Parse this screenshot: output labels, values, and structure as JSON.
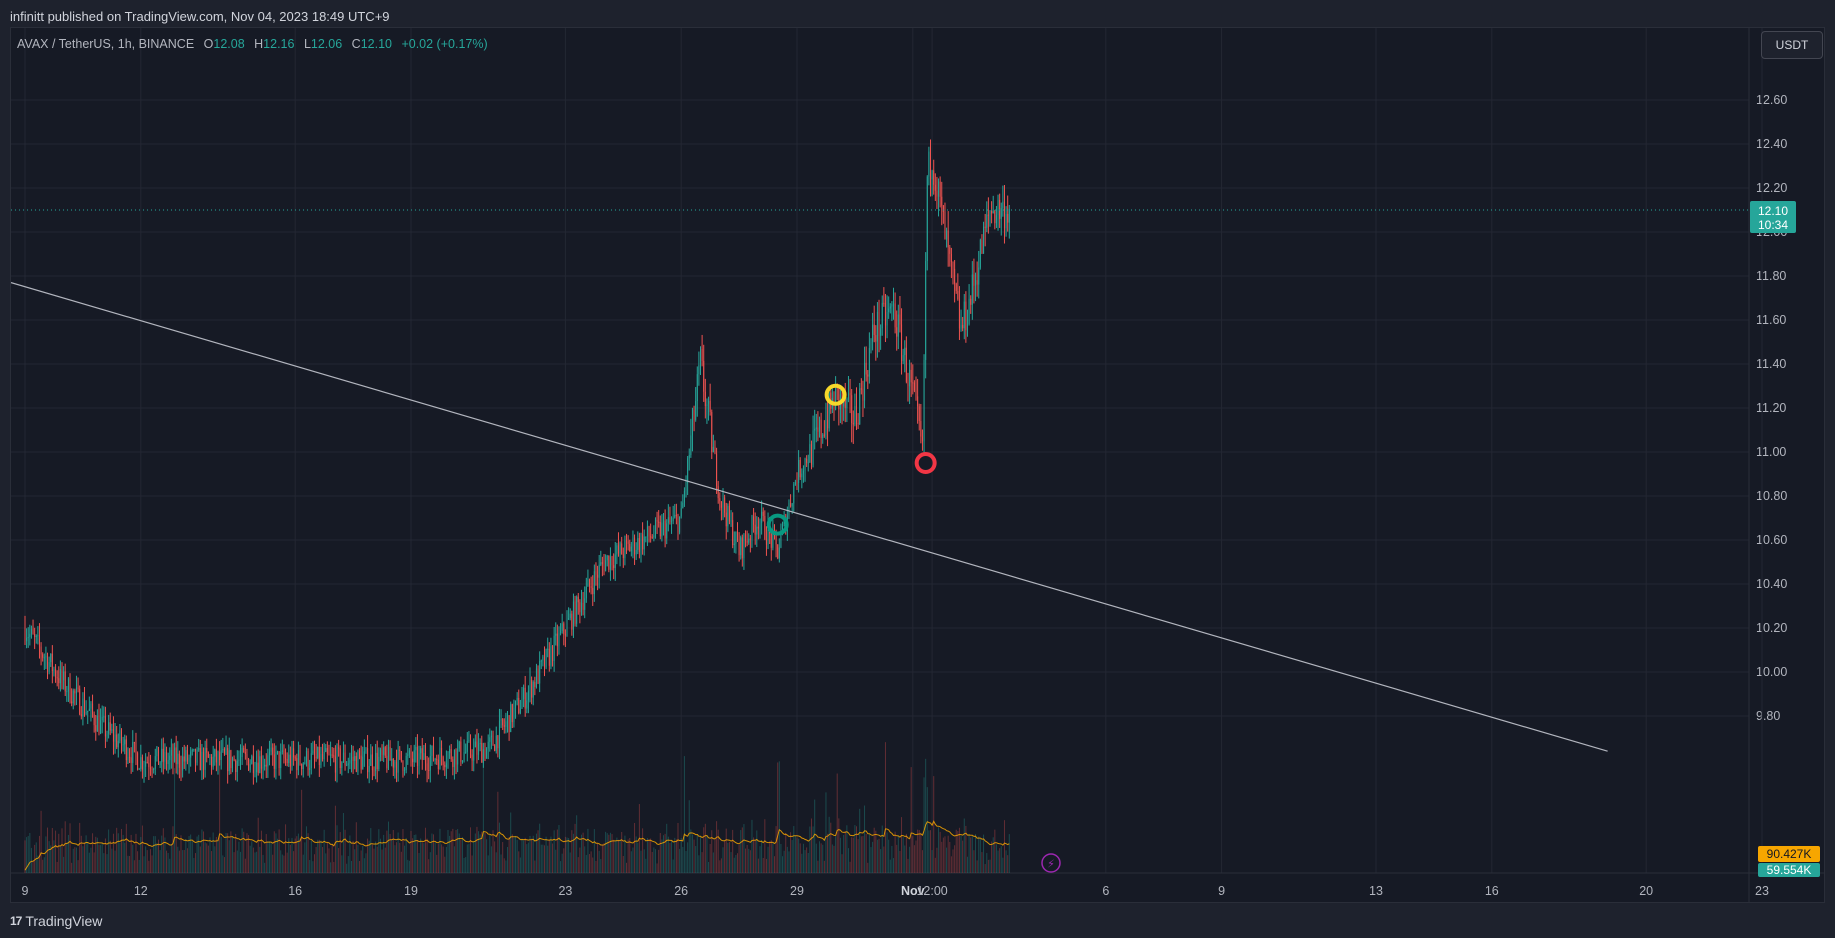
{
  "header": {
    "published": "infinitt published on TradingView.com, Nov 04, 2023 18:49 UTC+9"
  },
  "legend": {
    "symbol": "AVAX / TetherUS, 1h, BINANCE",
    "o_label": "O",
    "o_value": "12.08",
    "h_label": "H",
    "h_value": "12.16",
    "l_label": "L",
    "l_value": "12.06",
    "c_label": "C",
    "c_value": "12.10",
    "change": "+0.02 (+0.17%)"
  },
  "currency_button": "USDT",
  "price_badge": {
    "price": "12.10",
    "countdown": "10:34"
  },
  "volume_badges": {
    "ma": "90.427K",
    "volume": "59.554K"
  },
  "footer": {
    "logo_mark": "17",
    "brand": "TradingView"
  },
  "colors": {
    "up": "#26a69a",
    "down": "#ef5350",
    "trendline": "#b2b5be",
    "volume_ma": "#f7a600",
    "marker_green": "#089981",
    "marker_yellow": "#f7d82a",
    "marker_red": "#f23645",
    "alert": "#9c27b0"
  },
  "chart_data": {
    "type": "candlestick",
    "symbol": "AVAX / TetherUS",
    "interval": "1h",
    "y_ticks": [
      "12.60",
      "12.40",
      "12.20",
      "12.00",
      "11.80",
      "11.60",
      "11.40",
      "11.20",
      "11.00",
      "10.80",
      "10.60",
      "10.40",
      "10.20",
      "10.00",
      "9.80"
    ],
    "ylim": [
      9.6,
      12.8
    ],
    "x_ticks": [
      "9",
      "12",
      "16",
      "19",
      "23",
      "26",
      "29",
      "Nov",
      "12:00",
      "6",
      "9",
      "13",
      "16",
      "20",
      "23"
    ],
    "x_tick_dates": [
      "2023-10-09",
      "2023-10-12",
      "2023-10-16",
      "2023-10-19",
      "2023-10-23",
      "2023-10-26",
      "2023-10-29",
      "2023-11-01",
      "2023-11-01 12:00",
      "2023-11-06",
      "2023-11-09",
      "2023-11-13",
      "2023-11-16",
      "2023-11-20",
      "2023-11-23"
    ],
    "last_price": 12.1,
    "price_path": [
      [
        "2023-10-09",
        10.2
      ],
      [
        "2023-10-10",
        9.95
      ],
      [
        "2023-10-11",
        9.75
      ],
      [
        "2023-10-12",
        9.6
      ],
      [
        "2023-10-16",
        9.6
      ],
      [
        "2023-10-19",
        9.6
      ],
      [
        "2023-10-21",
        9.65
      ],
      [
        "2023-10-22",
        9.9
      ],
      [
        "2023-10-23",
        10.2
      ],
      [
        "2023-10-24",
        10.5
      ],
      [
        "2023-10-25",
        10.6
      ],
      [
        "2023-10-26",
        10.7
      ],
      [
        "2023-10-26 12:00",
        11.4
      ],
      [
        "2023-10-27",
        10.8
      ],
      [
        "2023-10-27 12:00",
        10.55
      ],
      [
        "2023-10-28",
        10.7
      ],
      [
        "2023-10-28 12:00",
        10.55
      ],
      [
        "2023-10-29",
        10.9
      ],
      [
        "2023-10-29 12:00",
        11.05
      ],
      [
        "2023-10-30",
        11.25
      ],
      [
        "2023-10-30 12:00",
        11.15
      ],
      [
        "2023-10-31",
        11.55
      ],
      [
        "2023-10-31 12:00",
        11.65
      ],
      [
        "2023-11-01",
        11.25
      ],
      [
        "2023-11-01 06:00",
        11.0
      ],
      [
        "2023-11-01 09:00",
        12.25
      ],
      [
        "2023-11-01 12:00",
        12.35
      ],
      [
        "2023-11-02",
        11.8
      ],
      [
        "2023-11-02 06:00",
        11.55
      ],
      [
        "2023-11-02 12:00",
        11.7
      ],
      [
        "2023-11-03",
        12.1
      ],
      [
        "2023-11-03 12:00",
        12.1
      ]
    ],
    "trendline": {
      "from": [
        "2023-10-09",
        11.77
      ],
      "to": [
        "2023-11-19",
        9.64
      ]
    },
    "markers": [
      {
        "date": "2023-10-28 12:00",
        "price": 10.67,
        "color": "green"
      },
      {
        "date": "2023-10-30",
        "price": 11.26,
        "color": "yellow"
      },
      {
        "date": "2023-11-01 08:00",
        "price": 10.95,
        "color": "red"
      }
    ],
    "volume_ma_label": "90.427K",
    "volume_label": "59.554K"
  }
}
